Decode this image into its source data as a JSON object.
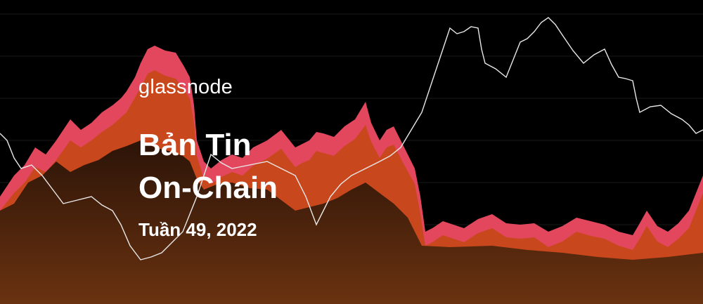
{
  "brand": "glassnode",
  "title": [
    "Bản Tin",
    "On-Chain"
  ],
  "subtitle": "Tuần 49, 2022"
}
